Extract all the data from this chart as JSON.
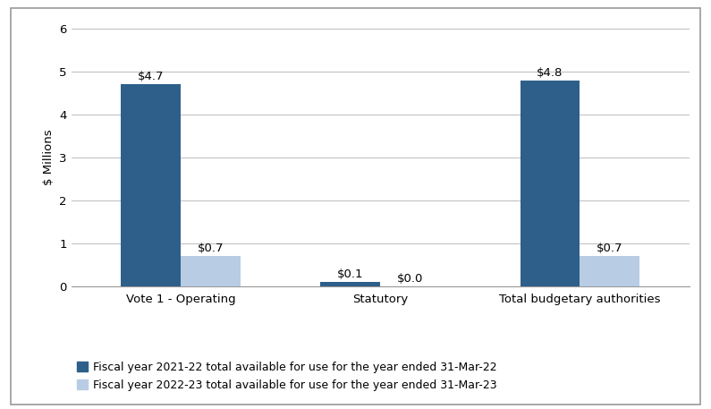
{
  "categories": [
    "Vote 1 - Operating",
    "Statutory",
    "Total budgetary authorities"
  ],
  "series1_values": [
    4.7,
    0.1,
    4.8
  ],
  "series2_values": [
    0.7,
    0.0,
    0.7
  ],
  "series1_label": "Fiscal year 2021-22 total available for use for the year ended 31-Mar-22",
  "series2_label": "Fiscal year 2022-23 total available for use for the year ended 31-Mar-23",
  "series1_color": "#2E5F8A",
  "series2_color": "#B8CCE4",
  "series1_annotations": [
    "$4.7",
    "$0.1",
    "$4.8"
  ],
  "series2_annotations": [
    "$0.7",
    "$0.0",
    "$0.7"
  ],
  "ylabel": "$ Millions",
  "ylim": [
    0,
    6
  ],
  "yticks": [
    0,
    1,
    2,
    3,
    4,
    5,
    6
  ],
  "bar_width": 0.3,
  "background_color": "#ffffff",
  "grid_color": "#BBBBBB",
  "tick_fontsize": 9.5,
  "label_fontsize": 9.5,
  "legend_fontsize": 9.0,
  "border_color": "#999999"
}
